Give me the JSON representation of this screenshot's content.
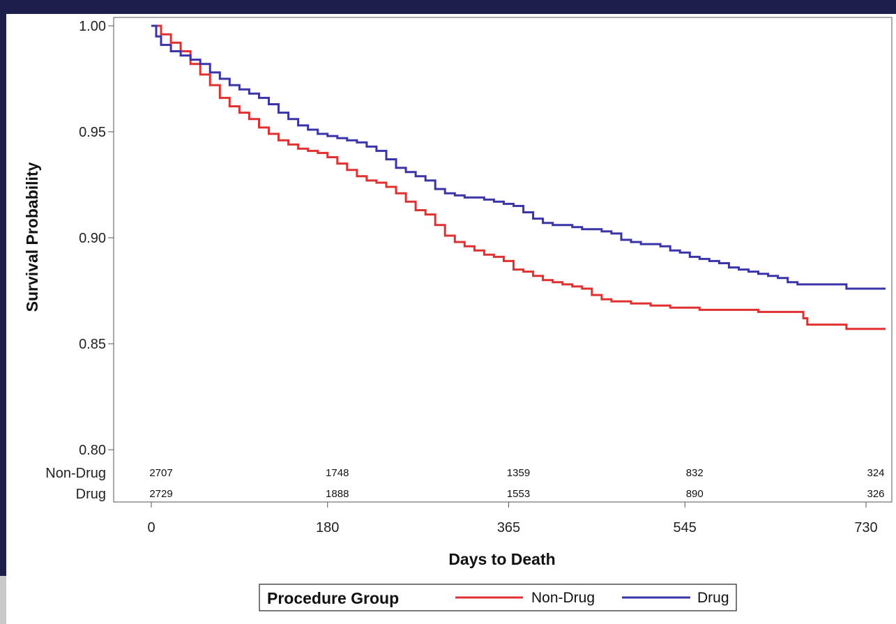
{
  "chart_data": {
    "type": "line",
    "title": "",
    "xlabel": "Days to Death",
    "ylabel": "Survival Probability",
    "xlim": [
      -20,
      760
    ],
    "ylim": [
      0.8,
      1.0
    ],
    "x_ticks": [
      0,
      180,
      365,
      545,
      730
    ],
    "y_ticks": [
      0.8,
      0.85,
      0.9,
      0.95,
      1.0
    ],
    "y_tick_labels": [
      "0.80",
      "0.85",
      "0.90",
      "0.95",
      "1.00"
    ],
    "step": true,
    "colors": {
      "Non-Drug": "#e03030",
      "Drug": "#3a34a8"
    },
    "series": [
      {
        "name": "Non-Drug",
        "points": [
          [
            0,
            1.0
          ],
          [
            10,
            0.996
          ],
          [
            20,
            0.992
          ],
          [
            30,
            0.988
          ],
          [
            40,
            0.982
          ],
          [
            50,
            0.977
          ],
          [
            60,
            0.972
          ],
          [
            70,
            0.966
          ],
          [
            80,
            0.962
          ],
          [
            90,
            0.959
          ],
          [
            100,
            0.956
          ],
          [
            110,
            0.952
          ],
          [
            120,
            0.949
          ],
          [
            130,
            0.946
          ],
          [
            140,
            0.944
          ],
          [
            150,
            0.942
          ],
          [
            160,
            0.941
          ],
          [
            170,
            0.94
          ],
          [
            180,
            0.938
          ],
          [
            190,
            0.935
          ],
          [
            200,
            0.932
          ],
          [
            210,
            0.929
          ],
          [
            220,
            0.927
          ],
          [
            230,
            0.926
          ],
          [
            240,
            0.924
          ],
          [
            250,
            0.921
          ],
          [
            260,
            0.917
          ],
          [
            270,
            0.913
          ],
          [
            280,
            0.911
          ],
          [
            290,
            0.906
          ],
          [
            300,
            0.901
          ],
          [
            310,
            0.898
          ],
          [
            320,
            0.896
          ],
          [
            330,
            0.894
          ],
          [
            340,
            0.892
          ],
          [
            350,
            0.891
          ],
          [
            360,
            0.889
          ],
          [
            370,
            0.885
          ],
          [
            380,
            0.884
          ],
          [
            390,
            0.882
          ],
          [
            400,
            0.88
          ],
          [
            410,
            0.879
          ],
          [
            420,
            0.878
          ],
          [
            430,
            0.877
          ],
          [
            440,
            0.876
          ],
          [
            450,
            0.873
          ],
          [
            460,
            0.871
          ],
          [
            470,
            0.87
          ],
          [
            480,
            0.87
          ],
          [
            490,
            0.869
          ],
          [
            500,
            0.869
          ],
          [
            510,
            0.868
          ],
          [
            520,
            0.868
          ],
          [
            530,
            0.867
          ],
          [
            540,
            0.867
          ],
          [
            550,
            0.867
          ],
          [
            560,
            0.866
          ],
          [
            580,
            0.866
          ],
          [
            600,
            0.866
          ],
          [
            620,
            0.865
          ],
          [
            640,
            0.865
          ],
          [
            660,
            0.865
          ],
          [
            666,
            0.862
          ],
          [
            670,
            0.859
          ],
          [
            700,
            0.859
          ],
          [
            710,
            0.857
          ],
          [
            750,
            0.857
          ]
        ]
      },
      {
        "name": "Drug",
        "points": [
          [
            0,
            1.0
          ],
          [
            5,
            0.995
          ],
          [
            10,
            0.991
          ],
          [
            20,
            0.988
          ],
          [
            30,
            0.986
          ],
          [
            40,
            0.984
          ],
          [
            50,
            0.982
          ],
          [
            60,
            0.978
          ],
          [
            70,
            0.975
          ],
          [
            80,
            0.972
          ],
          [
            90,
            0.97
          ],
          [
            100,
            0.968
          ],
          [
            110,
            0.966
          ],
          [
            120,
            0.963
          ],
          [
            130,
            0.959
          ],
          [
            140,
            0.956
          ],
          [
            150,
            0.953
          ],
          [
            160,
            0.951
          ],
          [
            170,
            0.949
          ],
          [
            180,
            0.948
          ],
          [
            190,
            0.947
          ],
          [
            200,
            0.946
          ],
          [
            210,
            0.945
          ],
          [
            220,
            0.943
          ],
          [
            230,
            0.941
          ],
          [
            240,
            0.937
          ],
          [
            250,
            0.933
          ],
          [
            260,
            0.931
          ],
          [
            270,
            0.929
          ],
          [
            280,
            0.927
          ],
          [
            290,
            0.923
          ],
          [
            300,
            0.921
          ],
          [
            310,
            0.92
          ],
          [
            320,
            0.919
          ],
          [
            330,
            0.919
          ],
          [
            340,
            0.918
          ],
          [
            350,
            0.917
          ],
          [
            360,
            0.916
          ],
          [
            370,
            0.915
          ],
          [
            380,
            0.912
          ],
          [
            390,
            0.909
          ],
          [
            400,
            0.907
          ],
          [
            410,
            0.906
          ],
          [
            420,
            0.906
          ],
          [
            430,
            0.905
          ],
          [
            440,
            0.904
          ],
          [
            450,
            0.904
          ],
          [
            460,
            0.903
          ],
          [
            470,
            0.902
          ],
          [
            480,
            0.899
          ],
          [
            490,
            0.898
          ],
          [
            500,
            0.897
          ],
          [
            510,
            0.897
          ],
          [
            520,
            0.896
          ],
          [
            530,
            0.894
          ],
          [
            540,
            0.893
          ],
          [
            550,
            0.891
          ],
          [
            560,
            0.89
          ],
          [
            570,
            0.889
          ],
          [
            580,
            0.888
          ],
          [
            590,
            0.886
          ],
          [
            600,
            0.885
          ],
          [
            610,
            0.884
          ],
          [
            620,
            0.883
          ],
          [
            630,
            0.882
          ],
          [
            640,
            0.881
          ],
          [
            650,
            0.879
          ],
          [
            660,
            0.878
          ],
          [
            680,
            0.878
          ],
          [
            700,
            0.878
          ],
          [
            710,
            0.876
          ],
          [
            750,
            0.876
          ]
        ]
      }
    ],
    "risk_table": {
      "groups": [
        "Non-Drug",
        "Drug"
      ],
      "rows": [
        {
          "name": "Non-Drug",
          "counts": [
            "2707",
            "1748",
            "1359",
            "832",
            "324"
          ]
        },
        {
          "name": "Drug",
          "counts": [
            "2729",
            "1888",
            "1553",
            "890",
            "326"
          ]
        }
      ]
    },
    "legend": {
      "title": "Procedure Group",
      "position": "bottom-center",
      "items": [
        "Non-Drug",
        "Drug"
      ]
    }
  }
}
